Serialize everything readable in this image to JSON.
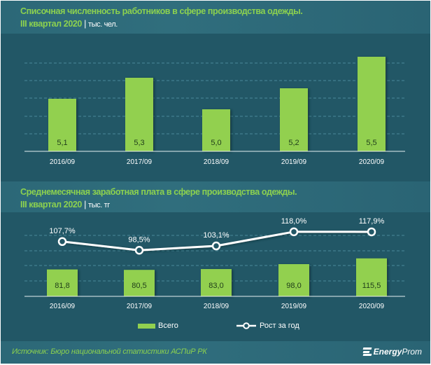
{
  "chart1": {
    "title_line1": "Списочная численность работников в сфере производства одежды.",
    "title_line2": "III квартал  2020",
    "separator": "|",
    "unit": "тыс. чел."
  },
  "chart2": {
    "title_line1": "Среднемесячная заработная плата  в сфере производства одежды.",
    "title_line2": "III квартал  2020",
    "separator": "|",
    "unit": "тыс. тг"
  },
  "legend": {
    "bar_label": "Всего",
    "line_label": "Рост за год"
  },
  "footer": {
    "source": "Источник: Бюро национальной  статистики АСПиР РК",
    "logo_bold": "Energy",
    "logo_regular": "Prom",
    "logo_icon": "energyprom-logo-icon"
  },
  "colors": {
    "background": "#225766",
    "title_band": "#2e6a79",
    "title_text": "#8cd14f",
    "bar": "#92d050",
    "line": "#ffffff",
    "gridline": "#4b8a9a"
  },
  "chart_data": [
    {
      "type": "bar",
      "title": "Списочная численность работников в сфере производства одежды. III квартал 2020",
      "unit": "тыс. чел.",
      "categories": [
        "2016/09",
        "2017/09",
        "2018/09",
        "2019/09",
        "2020/09"
      ],
      "values": [
        5.1,
        5.3,
        5.0,
        5.2,
        5.5
      ],
      "value_labels": [
        "5,1",
        "5,3",
        "5,0",
        "5,2",
        "5,5"
      ],
      "xlabel": "",
      "ylabel": "",
      "ylim": [
        4.6,
        5.6
      ],
      "grid": true,
      "legend": "none"
    },
    {
      "type": "bar",
      "title": "Среднемесячная заработная плата в сфере производства одежды. III квартал 2020",
      "unit": "тыс. тг",
      "categories": [
        "2016/09",
        "2017/09",
        "2018/09",
        "2019/09",
        "2020/09"
      ],
      "series": [
        {
          "name": "Всего",
          "type": "bar",
          "values": [
            81.8,
            80.5,
            83.0,
            98.0,
            115.5
          ],
          "value_labels": [
            "81,8",
            "80,5",
            "83,0",
            "98,0",
            "115,5"
          ]
        },
        {
          "name": "Рост за год",
          "type": "line",
          "values": [
            107.7,
            98.5,
            103.1,
            118.0,
            117.9
          ],
          "value_labels": [
            "107,7%",
            "98,5%",
            "103,1%",
            "118,0%",
            "117,9%"
          ]
        }
      ],
      "bar_ylim": [
        0,
        260
      ],
      "line_ylim": [
        50,
        140
      ],
      "grid": true,
      "legend": "bottom"
    }
  ]
}
